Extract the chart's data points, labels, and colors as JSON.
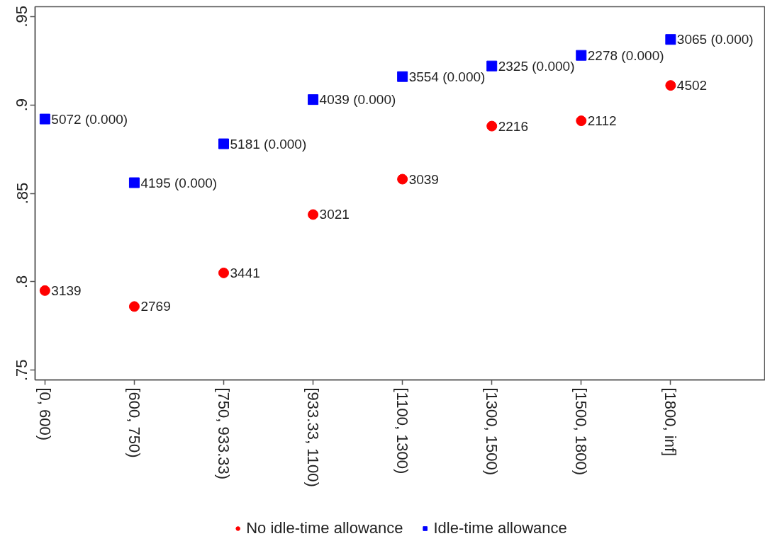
{
  "chart_data": {
    "type": "scatter",
    "categories": [
      "[0, 600)",
      "[600, 750)",
      "[750, 933.33)",
      "[933.33, 1100)",
      "[1100, 1300)",
      "[1300, 1500)",
      "[1500, 1800)",
      "[1800, inf]"
    ],
    "series": [
      {
        "name": "No idle-time allowance",
        "color": "#ff0000",
        "marker": "circle",
        "values": [
          0.795,
          0.786,
          0.805,
          0.838,
          0.858,
          0.888,
          0.891,
          0.911
        ]
      },
      {
        "name": "Idle-time allowance",
        "color": "#0000ff",
        "marker": "square",
        "values": [
          0.892,
          0.856,
          0.878,
          0.903,
          0.916,
          0.922,
          0.928,
          0.937
        ]
      }
    ],
    "annotations": [
      {
        "text": "3139",
        "x": "[0, 600)",
        "y": 0.795
      },
      {
        "text": "2769",
        "x": "[600, 750)",
        "y": 0.786
      },
      {
        "text": "3441",
        "x": "[750, 933.33)",
        "y": 0.805
      },
      {
        "text": "3021",
        "x": "[933.33, 1100)",
        "y": 0.838
      },
      {
        "text": "3039",
        "x": "[1100, 1300)",
        "y": 0.858
      },
      {
        "text": "2216",
        "x": "[1300, 1500)",
        "y": 0.888
      },
      {
        "text": "2112",
        "x": "[1500, 1800)",
        "y": 0.891
      },
      {
        "text": "4502",
        "x": "[1800, inf]",
        "y": 0.911
      },
      {
        "text": "5072 (0.000)",
        "x": "[0, 600)",
        "y": 0.892
      },
      {
        "text": "4195 (0.000)",
        "x": "[600, 750)",
        "y": 0.856
      },
      {
        "text": "5181 (0.000)",
        "x": "[750, 933.33)",
        "y": 0.878
      },
      {
        "text": "4039 (0.000)",
        "x": "[933.33, 1100)",
        "y": 0.903
      },
      {
        "text": "3554 (0.000)",
        "x": "[1100, 1300)",
        "y": 0.916
      },
      {
        "text": "2325 (0.000)",
        "x": "[1300, 1500)",
        "y": 0.922
      },
      {
        "text": "2278 (0.000)",
        "x": "[1500, 1800)",
        "y": 0.928
      },
      {
        "text": "3065 (0.000)",
        "x": "[1800, inf]",
        "y": 0.937
      }
    ],
    "ylim": [
      0.7445,
      0.9555
    ],
    "yticks": [
      {
        "value": 0.75,
        "label": ".75"
      },
      {
        "value": 0.8,
        "label": ".8"
      },
      {
        "value": 0.85,
        "label": ".85"
      },
      {
        "value": 0.9,
        "label": ".9"
      },
      {
        "value": 0.95,
        "label": ".95"
      }
    ],
    "legend": "bottom"
  }
}
